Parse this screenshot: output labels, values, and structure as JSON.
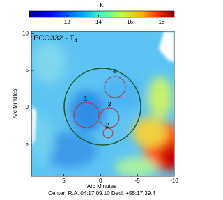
{
  "chart_data": {
    "type": "heatmap",
    "title": "ECO332 - T",
    "title_subscript": "d",
    "colorbar": {
      "label": "K",
      "lim": [
        9.6,
        18.8
      ],
      "ticks": [
        12,
        14,
        16,
        18
      ]
    },
    "xlabel": "Arc Minutes",
    "ylabel": "Arc Minutes",
    "xlim": [
      9.4,
      -10
    ],
    "xticks": [
      5,
      0,
      -5,
      -10
    ],
    "ylim": [
      -9.4,
      10.3
    ],
    "yticks": [
      10,
      5,
      0,
      -5
    ],
    "annotations": [
      "1",
      "2",
      "3",
      "4"
    ],
    "footer": "Center: R.A. 04:17:09.10  Decl. +55:17:39.4"
  }
}
